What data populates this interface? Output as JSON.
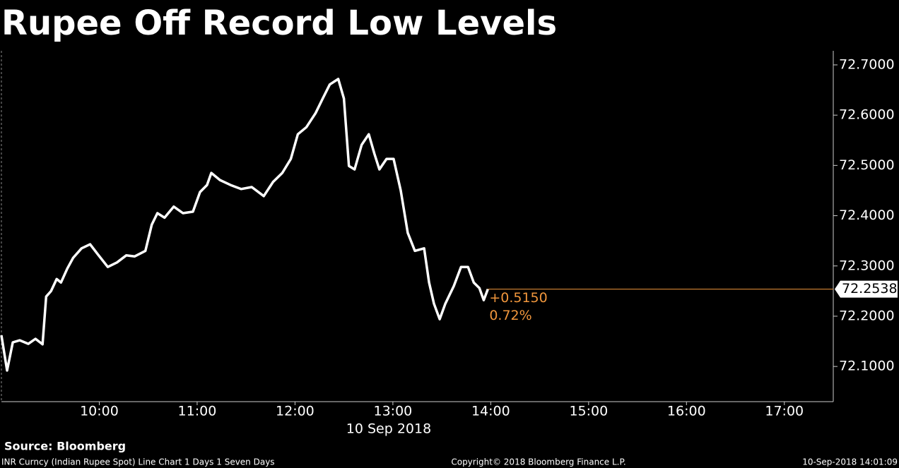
{
  "chart_data": {
    "type": "line",
    "title": "Rupee Off Record Low Levels",
    "x_label": "10 Sep 2018",
    "x": [
      9.0,
      9.058,
      9.116,
      9.188,
      9.275,
      9.348,
      9.42,
      9.457,
      9.507,
      9.565,
      9.609,
      9.674,
      9.732,
      9.819,
      9.906,
      9.986,
      10.087,
      10.181,
      10.275,
      10.362,
      10.471,
      10.536,
      10.594,
      10.667,
      10.761,
      10.855,
      10.957,
      11.029,
      11.101,
      11.145,
      11.232,
      11.341,
      11.449,
      11.558,
      11.681,
      11.775,
      11.87,
      11.957,
      12.029,
      12.116,
      12.21,
      12.283,
      12.355,
      12.442,
      12.5,
      12.551,
      12.609,
      12.681,
      12.754,
      12.812,
      12.862,
      12.935,
      13.007,
      13.08,
      13.152,
      13.225,
      13.319,
      13.37,
      13.42,
      13.478,
      13.536,
      13.623,
      13.696,
      13.768,
      13.826,
      13.884,
      13.928,
      13.971
    ],
    "series": [
      {
        "name": "INR Curncy",
        "color": "#ffffff",
        "values": [
          72.162,
          72.092,
          72.148,
          72.152,
          72.145,
          72.155,
          72.144,
          72.239,
          72.25,
          72.274,
          72.267,
          72.295,
          72.316,
          72.335,
          72.343,
          72.323,
          72.298,
          72.307,
          72.321,
          72.319,
          72.33,
          72.382,
          72.405,
          72.396,
          72.418,
          72.405,
          72.408,
          72.447,
          72.461,
          72.485,
          72.471,
          72.461,
          72.453,
          72.457,
          72.439,
          72.467,
          72.485,
          72.513,
          72.562,
          72.576,
          72.604,
          72.633,
          72.661,
          72.672,
          72.633,
          72.499,
          72.492,
          72.541,
          72.562,
          72.523,
          72.492,
          72.513,
          72.513,
          72.45,
          72.366,
          72.33,
          72.335,
          72.267,
          72.225,
          72.194,
          72.225,
          72.26,
          72.298,
          72.298,
          72.267,
          72.256,
          72.232,
          72.2538
        ]
      }
    ],
    "annotations": [
      "+0.5150",
      "0.72%"
    ],
    "annotation_color": "#f0963c",
    "xlim": [
      9.0,
      17.5
    ],
    "xticks": [
      {
        "value": 10,
        "label": "10:00"
      },
      {
        "value": 11,
        "label": "11:00"
      },
      {
        "value": 12,
        "label": "12:00"
      },
      {
        "value": 13,
        "label": "13:00"
      },
      {
        "value": 14,
        "label": "14:00"
      },
      {
        "value": 15,
        "label": "15:00"
      },
      {
        "value": 16,
        "label": "16:00"
      },
      {
        "value": 17,
        "label": "17:00"
      }
    ],
    "ylim": [
      72.03,
      72.728
    ],
    "yticks": [
      {
        "value": 72.1,
        "label": "72.1000"
      },
      {
        "value": 72.2,
        "label": "72.2000"
      },
      {
        "value": 72.3,
        "label": "72.3000"
      },
      {
        "value": 72.4,
        "label": "72.4000"
      },
      {
        "value": 72.5,
        "label": "72.5000"
      },
      {
        "value": 72.6,
        "label": "72.6000"
      },
      {
        "value": 72.7,
        "label": "72.7000"
      }
    ],
    "source": "Source: Bloomberg",
    "footer": {
      "left": "INR Curncy (Indian Rupee Spot) Line Chart 1 Days 1 Seven Days",
      "center": "Copyright© 2018 Bloomberg Finance L.P.",
      "right": "10-Sep-2018 14:01:09"
    }
  }
}
